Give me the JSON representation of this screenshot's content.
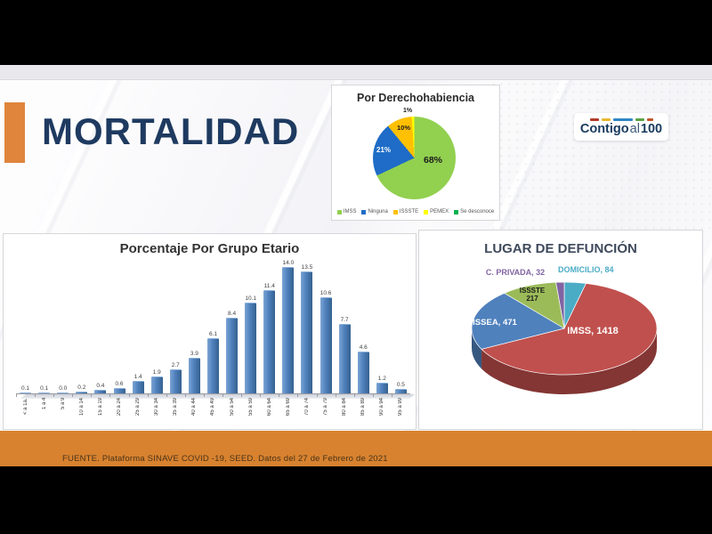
{
  "slide": {
    "title": "MORTALIDAD",
    "footer": "FUENTE. Plataforma SINAVE COVID -19, SEED. Datos del 27 de Febrero de 2021",
    "logo": {
      "part1": "Contigo",
      "part2": "al",
      "part3": "100",
      "dash_colors": [
        "#b23a2a",
        "#e8b830",
        "#2f86c6",
        "#5ba346",
        "#c0542b"
      ],
      "dash_widths": [
        10,
        10,
        22,
        10,
        7
      ]
    }
  },
  "chart_data": [
    {
      "type": "pie",
      "title": "Por Derechohabiencia",
      "labels": [
        "IMSS",
        "Ninguna",
        "ISSSTE",
        "PEMEX",
        "Se desconoce"
      ],
      "values_pct": [
        68,
        21,
        10,
        1,
        0
      ],
      "slice_labels": {
        "imss": "68%",
        "ninguna": "21%",
        "issste": "10%",
        "pemex": "1%"
      },
      "colors": [
        "#92d050",
        "#1e6cc7",
        "#ffc000",
        "#ffff00",
        "#00b050"
      ],
      "legend_position": "bottom",
      "start_angle_deg": 0,
      "direction": "clockwise"
    },
    {
      "type": "bar",
      "title": "Porcentaje Por Grupo Etario",
      "categories": [
        "< a 1a.",
        "1 a 4",
        "5 a 9",
        "10 a 14",
        "15 a 19",
        "20 a 24",
        "25 a 29",
        "30 a 34",
        "35 a 39",
        "40 a 44",
        "45 a 49",
        "50 a 54",
        "55 a 59",
        "60 a 64",
        "65 a 69",
        "70 a 74",
        "75 a 79",
        "80 a 84",
        "85 a 89",
        "90 a 94",
        "95 a 99"
      ],
      "values": [
        0.1,
        0.1,
        0.0,
        0.2,
        0.4,
        0.6,
        1.4,
        1.9,
        2.7,
        3.9,
        6.1,
        8.4,
        10.1,
        11.4,
        14.0,
        13.5,
        10.6,
        7.7,
        4.6,
        1.2,
        0.5
      ],
      "bar_color": "#4f81bd",
      "ylim": [
        0,
        15
      ],
      "value_labels": "one-decimal",
      "grid": false
    },
    {
      "type": "pie",
      "style": "3d",
      "title": "LUGAR DE DEFUNCIÓN",
      "labels": [
        "IMSS",
        "ISSEA",
        "ISSSTE",
        "C. PRIVADA",
        "DOMICILIO"
      ],
      "values": [
        1418,
        471,
        217,
        32,
        84
      ],
      "colors": [
        "#c0504d",
        "#4f81bd",
        "#9bbb59",
        "#8064a2",
        "#4bacc6"
      ],
      "draw_order": [
        4,
        0,
        1,
        2,
        3
      ],
      "callouts": {
        "imss": "IMSS, 1418",
        "issea": "ISSEA, 471",
        "issste_line1": "ISSSTE",
        "issste_line2": "217",
        "cpriv": "C. PRIVADA, 32",
        "domicilio": "DOMICILIO, 84"
      },
      "callout_colors": {
        "cpriv": "#8064a2",
        "domicilio": "#4bacc6"
      }
    }
  ]
}
